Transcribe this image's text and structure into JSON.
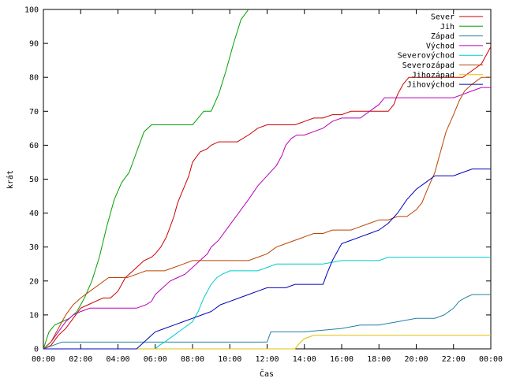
{
  "chart_data": {
    "type": "line",
    "title": "",
    "xlabel": "Čas",
    "ylabel": "krát",
    "xlim": [
      0,
      24
    ],
    "ylim": [
      0,
      100
    ],
    "x_ticks": [
      "00:00",
      "02:00",
      "04:00",
      "06:00",
      "08:00",
      "10:00",
      "12:00",
      "14:00",
      "16:00",
      "18:00",
      "20:00",
      "22:00",
      "00:00"
    ],
    "y_ticks": [
      "0",
      "10",
      "20",
      "30",
      "40",
      "50",
      "60",
      "70",
      "80",
      "90",
      "100"
    ],
    "grid": false,
    "legend_position": "top-right",
    "series": [
      {
        "name": "Sever",
        "color": "#cc0000",
        "x": [
          0,
          0.4,
          0.8,
          1.2,
          1.6,
          2.0,
          2.4,
          2.8,
          3.2,
          3.6,
          4.0,
          4.2,
          4.4,
          4.6,
          5.0,
          5.4,
          5.8,
          6.0,
          6.3,
          6.6,
          6.8,
          7.0,
          7.2,
          7.5,
          7.8,
          8.0,
          8.4,
          8.8,
          9.0,
          9.4,
          9.8,
          10.0,
          10.4,
          11.0,
          11.5,
          12.0,
          12.5,
          13.0,
          13.5,
          14.0,
          14.5,
          15.0,
          15.5,
          16.0,
          16.5,
          17.0,
          17.5,
          18.0,
          18.5,
          18.8,
          19.0,
          19.3,
          19.6,
          20.0,
          20.5,
          21.0,
          21.5,
          22.0,
          22.5,
          23.0,
          23.5,
          24.0
        ],
        "y": [
          0,
          1,
          4,
          6,
          9,
          12,
          13,
          14,
          15,
          15,
          17,
          19,
          21,
          22,
          24,
          26,
          27,
          28,
          30,
          33,
          36,
          39,
          43,
          47,
          51,
          55,
          58,
          59,
          60,
          61,
          61,
          61,
          61,
          63,
          65,
          66,
          66,
          66,
          66,
          67,
          68,
          68,
          69,
          69,
          70,
          70,
          70,
          70,
          70,
          72,
          75,
          78,
          80,
          80,
          80,
          80,
          80,
          80,
          80,
          82,
          84,
          89
        ]
      },
      {
        "name": "Jih",
        "color": "#00a000",
        "x": [
          0,
          0.3,
          0.6,
          1.0,
          1.4,
          1.8,
          2.2,
          2.6,
          3.0,
          3.4,
          3.8,
          4.2,
          4.6,
          5.0,
          5.4,
          5.8,
          6.0,
          6.5,
          7.0,
          7.5,
          8.0,
          8.3,
          8.6,
          9.0,
          9.4,
          9.8,
          10.2,
          10.6,
          11.0
        ],
        "y": [
          0,
          5,
          7,
          8,
          9,
          11,
          15,
          20,
          27,
          36,
          44,
          49,
          52,
          58,
          64,
          66,
          66,
          66,
          66,
          66,
          66,
          68,
          70,
          70,
          75,
          82,
          90,
          97,
          100
        ]
      },
      {
        "name": "Západ",
        "color": "#2080a0",
        "x": [
          0,
          0.5,
          1.0,
          4.0,
          6.0,
          8.0,
          10.0,
          12.0,
          12.2,
          14.0,
          16.0,
          17.0,
          18.0,
          19.0,
          20.0,
          20.5,
          21.0,
          21.5,
          22.0,
          22.3,
          22.6,
          23.0,
          23.5,
          24.0
        ],
        "y": [
          0,
          1,
          2,
          2,
          2,
          2,
          2,
          2,
          5,
          5,
          6,
          7,
          7,
          8,
          9,
          9,
          9,
          10,
          12,
          14,
          15,
          16,
          16,
          16
        ]
      },
      {
        "name": "Východ",
        "color": "#bb00bb",
        "x": [
          0,
          0.4,
          0.8,
          1.2,
          1.6,
          2.0,
          2.5,
          3.0,
          3.5,
          4.0,
          4.5,
          5.0,
          5.5,
          5.8,
          6.0,
          6.4,
          6.8,
          7.2,
          7.6,
          8.0,
          8.4,
          8.8,
          9.0,
          9.4,
          9.8,
          10.2,
          10.6,
          11.0,
          11.5,
          12.0,
          12.5,
          12.8,
          13.0,
          13.3,
          13.6,
          14.0,
          14.5,
          15.0,
          15.5,
          16.0,
          16.5,
          17.0,
          17.5,
          18.0,
          18.3,
          18.6,
          19.0,
          19.5,
          20.0,
          21.0,
          22.0,
          22.5,
          23.0,
          23.5,
          24.0
        ],
        "y": [
          0,
          2,
          5,
          8,
          10,
          11,
          12,
          12,
          12,
          12,
          12,
          12,
          13,
          14,
          16,
          18,
          20,
          21,
          22,
          24,
          26,
          28,
          30,
          32,
          35,
          38,
          41,
          44,
          48,
          51,
          54,
          57,
          60,
          62,
          63,
          63,
          64,
          65,
          67,
          68,
          68,
          68,
          70,
          72,
          74,
          74,
          74,
          74,
          74,
          74,
          74,
          75,
          76,
          77,
          77
        ]
      },
      {
        "name": "Severovýchod",
        "color": "#00cccc",
        "x": [
          0,
          2.0,
          4.0,
          6.0,
          6.2,
          6.5,
          7.0,
          7.5,
          8.0,
          8.3,
          8.6,
          9.0,
          9.3,
          9.6,
          10.0,
          10.5,
          11.0,
          11.5,
          12.0,
          12.5,
          13.0,
          13.5,
          14.0,
          15.0,
          16.0,
          17.0,
          18.0,
          18.5,
          19.0,
          20.0,
          21.0,
          22.0,
          23.0,
          24.0
        ],
        "y": [
          0,
          0,
          0,
          0,
          1,
          2,
          4,
          6,
          8,
          11,
          15,
          19,
          21,
          22,
          23,
          23,
          23,
          23,
          24,
          25,
          25,
          25,
          25,
          25,
          26,
          26,
          26,
          27,
          27,
          27,
          27,
          27,
          27,
          27
        ]
      },
      {
        "name": "Severozápad",
        "color": "#bb4400",
        "x": [
          0,
          0.4,
          0.8,
          1.2,
          1.6,
          2.0,
          2.5,
          3.0,
          3.5,
          4.0,
          4.5,
          5.0,
          5.5,
          6.0,
          6.5,
          7.0,
          7.5,
          8.0,
          8.5,
          9.0,
          10.0,
          11.0,
          11.5,
          12.0,
          12.5,
          13.0,
          13.5,
          14.0,
          14.5,
          15.0,
          15.5,
          16.0,
          16.5,
          17.0,
          17.5,
          18.0,
          18.5,
          19.0,
          19.5,
          20.0,
          20.3,
          20.6,
          21.0,
          21.3,
          21.6,
          22.0,
          22.3,
          22.6,
          23.0,
          23.5,
          24.0
        ],
        "y": [
          0,
          2,
          6,
          10,
          13,
          15,
          17,
          19,
          21,
          21,
          21,
          22,
          23,
          23,
          23,
          24,
          25,
          26,
          26,
          26,
          26,
          26,
          27,
          28,
          30,
          31,
          32,
          33,
          34,
          34,
          35,
          35,
          35,
          36,
          37,
          38,
          38,
          39,
          39,
          41,
          43,
          47,
          52,
          58,
          64,
          69,
          73,
          76,
          78,
          80,
          80
        ]
      },
      {
        "name": "Jihozápad",
        "color": "#e0c000",
        "x": [
          0,
          10.0,
          13.5,
          13.8,
          14.0,
          14.5,
          15.0,
          16.0,
          18.0,
          20.0,
          22.0,
          24.0
        ],
        "y": [
          0,
          0,
          0,
          2,
          3,
          4,
          4,
          4,
          4,
          4,
          4,
          4
        ]
      },
      {
        "name": "Jihovýchod",
        "color": "#0000bb",
        "x": [
          0,
          2.0,
          4.0,
          5.0,
          5.4,
          5.8,
          6.0,
          6.5,
          7.0,
          7.5,
          8.0,
          8.5,
          9.0,
          9.5,
          10.0,
          10.5,
          11.0,
          11.5,
          12.0,
          12.5,
          13.0,
          13.5,
          14.0,
          14.5,
          15.0,
          15.2,
          15.5,
          15.8,
          16.0,
          16.5,
          17.0,
          17.5,
          18.0,
          18.5,
          19.0,
          19.5,
          20.0,
          20.5,
          21.0,
          21.5,
          22.0,
          22.5,
          23.0,
          23.5,
          24.0
        ],
        "y": [
          0,
          0,
          0,
          0,
          2,
          4,
          5,
          6,
          7,
          8,
          9,
          10,
          11,
          13,
          14,
          15,
          16,
          17,
          18,
          18,
          18,
          19,
          19,
          19,
          19,
          22,
          26,
          29,
          31,
          32,
          33,
          34,
          35,
          37,
          40,
          44,
          47,
          49,
          51,
          51,
          51,
          52,
          53,
          53,
          53
        ]
      }
    ]
  }
}
